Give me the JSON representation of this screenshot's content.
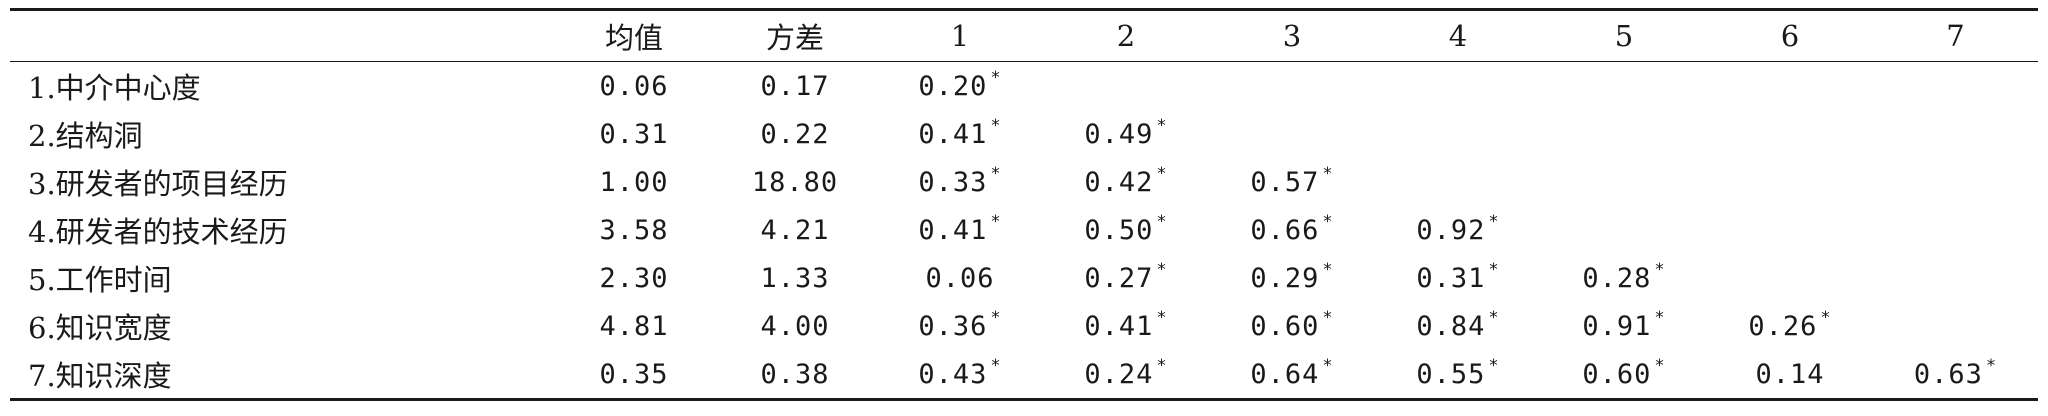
{
  "header": {
    "blank": "",
    "mean": "均值",
    "variance": "方差",
    "c1": "1",
    "c2": "2",
    "c3": "3",
    "c4": "4",
    "c5": "5",
    "c6": "6",
    "c7": "7"
  },
  "star": "*",
  "rows": [
    {
      "label": "1.中介中心度",
      "mean": "0.06",
      "variance": "0.17",
      "corr": [
        {
          "v": "0.20",
          "sig": true
        }
      ]
    },
    {
      "label": "2.结构洞",
      "mean": "0.31",
      "variance": "0.22",
      "corr": [
        {
          "v": "0.41",
          "sig": true
        },
        {
          "v": "0.49",
          "sig": true
        }
      ]
    },
    {
      "label": "3.研发者的项目经历",
      "mean": "1.00",
      "variance": "18.80",
      "corr": [
        {
          "v": "0.33",
          "sig": true
        },
        {
          "v": "0.42",
          "sig": true
        },
        {
          "v": "0.57",
          "sig": true
        }
      ]
    },
    {
      "label": "4.研发者的技术经历",
      "mean": "3.58",
      "variance": "4.21",
      "corr": [
        {
          "v": "0.41",
          "sig": true
        },
        {
          "v": "0.50",
          "sig": true
        },
        {
          "v": "0.66",
          "sig": true
        },
        {
          "v": "0.92",
          "sig": true
        }
      ]
    },
    {
      "label": "5.工作时间",
      "mean": "2.30",
      "variance": "1.33",
      "corr": [
        {
          "v": "0.06",
          "sig": false
        },
        {
          "v": "0.27",
          "sig": true
        },
        {
          "v": "0.29",
          "sig": true
        },
        {
          "v": "0.31",
          "sig": true
        },
        {
          "v": "0.28",
          "sig": true
        }
      ]
    },
    {
      "label": "6.知识宽度",
      "mean": "4.81",
      "variance": "4.00",
      "corr": [
        {
          "v": "0.36",
          "sig": true
        },
        {
          "v": "0.41",
          "sig": true
        },
        {
          "v": "0.60",
          "sig": true
        },
        {
          "v": "0.84",
          "sig": true
        },
        {
          "v": "0.91",
          "sig": true
        },
        {
          "v": "0.26",
          "sig": true
        }
      ]
    },
    {
      "label": "7.知识深度",
      "mean": "0.35",
      "variance": "0.38",
      "corr": [
        {
          "v": "0.43",
          "sig": true
        },
        {
          "v": "0.24",
          "sig": true
        },
        {
          "v": "0.64",
          "sig": true
        },
        {
          "v": "0.55",
          "sig": true
        },
        {
          "v": "0.60",
          "sig": true
        },
        {
          "v": "0.14",
          "sig": false
        },
        {
          "v": "0.63",
          "sig": true
        }
      ]
    }
  ]
}
